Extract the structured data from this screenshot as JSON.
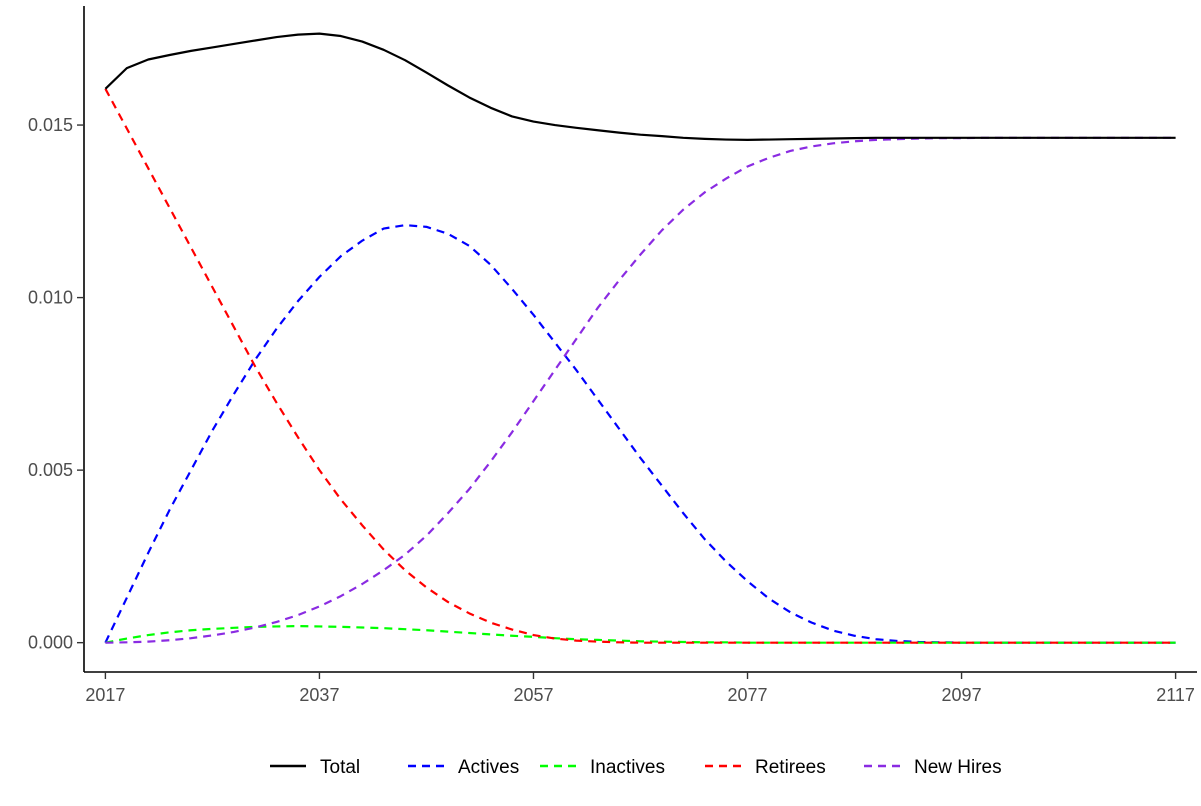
{
  "chart_data": {
    "type": "line",
    "title": "",
    "xlabel": "",
    "ylabel": "",
    "xlim": [
      2015,
      2119
    ],
    "ylim": [
      -0.00085,
      0.01845
    ],
    "x_ticks": [
      2017,
      2037,
      2057,
      2077,
      2097,
      2117
    ],
    "y_ticks": [
      0.0,
      0.005,
      0.01,
      0.015
    ],
    "y_tick_labels": [
      "0.000",
      "0.005",
      "0.010",
      "0.015"
    ],
    "grid": false,
    "legend_position": "bottom",
    "x": [
      2017,
      2019,
      2021,
      2023,
      2025,
      2027,
      2029,
      2031,
      2033,
      2035,
      2037,
      2039,
      2041,
      2043,
      2045,
      2047,
      2049,
      2051,
      2053,
      2055,
      2057,
      2059,
      2061,
      2063,
      2065,
      2067,
      2069,
      2071,
      2073,
      2075,
      2077,
      2079,
      2081,
      2083,
      2085,
      2087,
      2089,
      2091,
      2093,
      2095,
      2097,
      2099,
      2101,
      2103,
      2105,
      2107,
      2109,
      2111,
      2113,
      2115,
      2117
    ],
    "series": [
      {
        "name": "Total",
        "color": "#000000",
        "dash": "solid",
        "values": [
          0.01605,
          0.01665,
          0.0169,
          0.01703,
          0.01715,
          0.01725,
          0.01735,
          0.01745,
          0.01755,
          0.01762,
          0.01765,
          0.01758,
          0.01742,
          0.01718,
          0.01688,
          0.01652,
          0.01615,
          0.0158,
          0.0155,
          0.01525,
          0.0151,
          0.015,
          0.01492,
          0.01485,
          0.01478,
          0.01472,
          0.01468,
          0.01463,
          0.0146,
          0.01458,
          0.01457,
          0.01458,
          0.01459,
          0.0146,
          0.01461,
          0.01462,
          0.01463,
          0.01463,
          0.01463,
          0.01463,
          0.01463,
          0.01463,
          0.01463,
          0.01463,
          0.01463,
          0.01463,
          0.01463,
          0.01463,
          0.01463,
          0.01463,
          0.01463
        ]
      },
      {
        "name": "Actives",
        "color": "#0000ff",
        "dash": "dashed",
        "values": [
          0.0,
          0.0013,
          0.0026,
          0.00385,
          0.005,
          0.00615,
          0.0072,
          0.0082,
          0.0091,
          0.0099,
          0.0106,
          0.0112,
          0.01165,
          0.012,
          0.0121,
          0.01205,
          0.01185,
          0.0115,
          0.01095,
          0.01025,
          0.0095,
          0.0087,
          0.0079,
          0.00705,
          0.0062,
          0.00535,
          0.00455,
          0.00375,
          0.003,
          0.00235,
          0.00178,
          0.00128,
          0.00088,
          0.00058,
          0.00035,
          0.0002,
          0.0001,
          5e-05,
          2e-05,
          1e-05,
          0.0,
          0.0,
          0.0,
          0.0,
          0.0,
          0.0,
          0.0,
          0.0,
          0.0,
          0.0,
          0.0
        ]
      },
      {
        "name": "Inactives",
        "color": "#00ff00",
        "dash": "dashed",
        "values": [
          0.0,
          0.00012,
          0.00022,
          0.0003,
          0.00036,
          0.0004,
          0.00043,
          0.00046,
          0.00047,
          0.00048,
          0.00047,
          0.00046,
          0.00044,
          0.00042,
          0.00039,
          0.00036,
          0.00032,
          0.00028,
          0.00024,
          0.0002,
          0.00017,
          0.00013,
          0.0001,
          8e-05,
          6e-05,
          4e-05,
          3e-05,
          2e-05,
          1e-05,
          1e-05,
          0.0,
          0.0,
          0.0,
          0.0,
          0.0,
          0.0,
          0.0,
          0.0,
          0.0,
          0.0,
          0.0,
          0.0,
          0.0,
          0.0,
          0.0,
          0.0,
          0.0,
          0.0,
          0.0,
          0.0,
          0.0
        ]
      },
      {
        "name": "Retirees",
        "color": "#ff0000",
        "dash": "dashed",
        "values": [
          0.01605,
          0.0149,
          0.01375,
          0.0126,
          0.01145,
          0.0103,
          0.00915,
          0.008,
          0.00695,
          0.00595,
          0.005,
          0.00415,
          0.0034,
          0.0027,
          0.0021,
          0.0016,
          0.00118,
          0.00085,
          0.00058,
          0.00038,
          0.00022,
          0.00012,
          6e-05,
          3e-05,
          1e-05,
          0.0,
          0.0,
          0.0,
          0.0,
          0.0,
          0.0,
          0.0,
          0.0,
          0.0,
          0.0,
          0.0,
          0.0,
          0.0,
          0.0,
          0.0,
          0.0,
          0.0,
          0.0,
          0.0,
          0.0,
          0.0,
          0.0,
          0.0,
          0.0,
          0.0,
          0.0
        ]
      },
      {
        "name": "New Hires",
        "color": "#8a2be2",
        "dash": "dashed",
        "values": [
          0.0,
          1e-05,
          3e-05,
          7e-05,
          0.00013,
          0.00021,
          0.00031,
          0.00044,
          0.0006,
          0.0008,
          0.00105,
          0.00135,
          0.0017,
          0.0021,
          0.00255,
          0.0031,
          0.00375,
          0.00445,
          0.00525,
          0.0061,
          0.007,
          0.0079,
          0.0088,
          0.0097,
          0.0105,
          0.01125,
          0.01195,
          0.01255,
          0.01305,
          0.01345,
          0.0138,
          0.01405,
          0.01425,
          0.01438,
          0.01447,
          0.01453,
          0.01457,
          0.01459,
          0.01461,
          0.01462,
          0.01462,
          0.01463,
          0.01463,
          0.01463,
          0.01463,
          0.01463,
          0.01463,
          0.01463,
          0.01463,
          0.01463,
          0.01463
        ]
      }
    ]
  }
}
